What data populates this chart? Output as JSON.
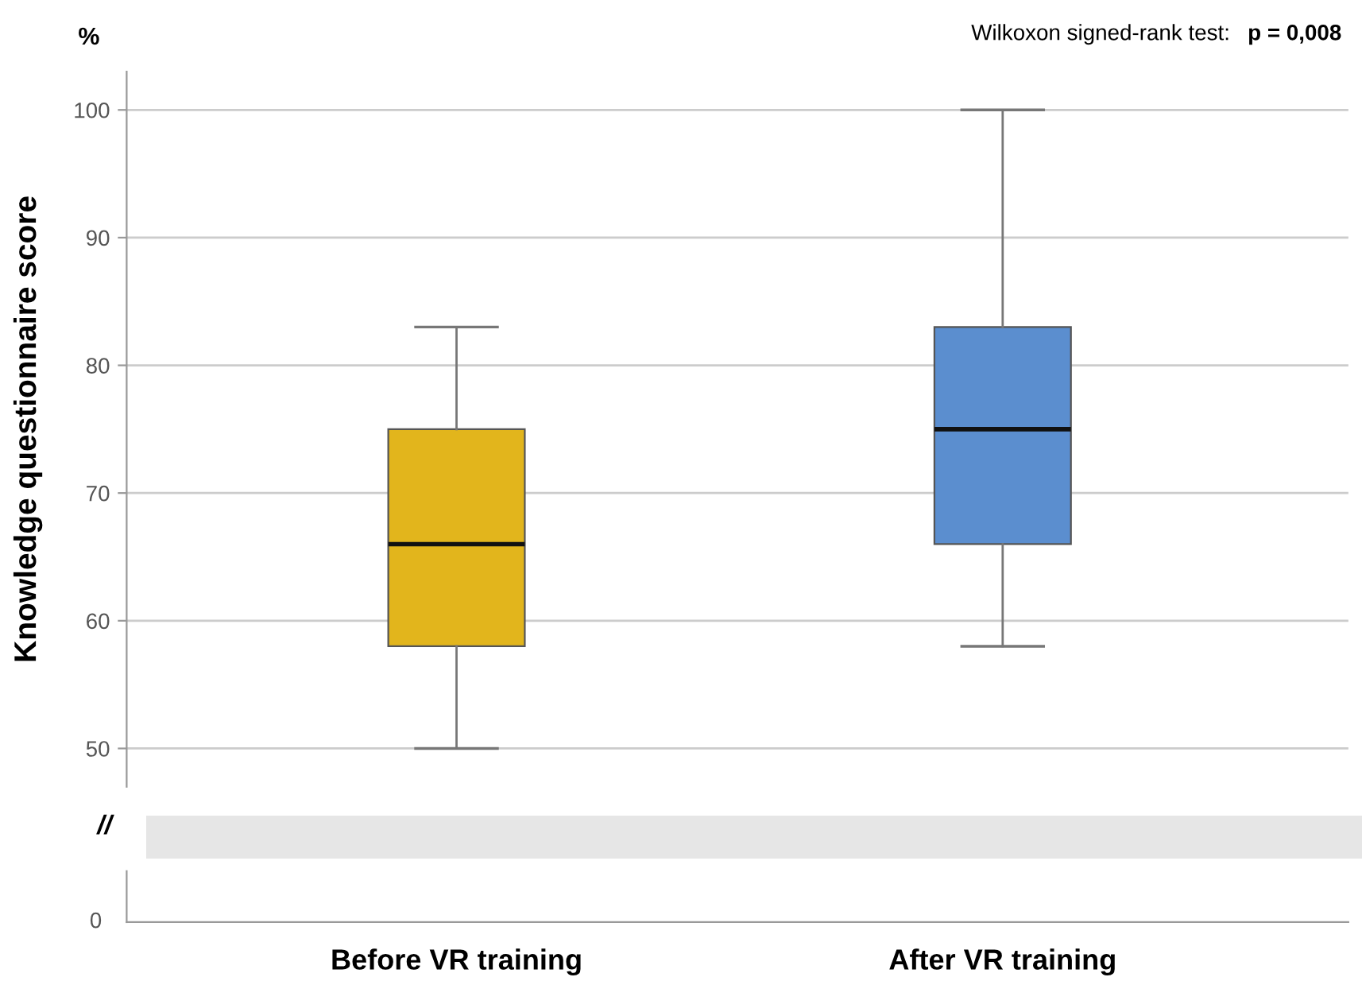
{
  "chart_data": [
    {
      "type": "box",
      "ylabel": "Knowledge questionnaire score",
      "categories": [
        null,
        null
      ],
      "series": [
        {
          "colors": [
            "#e2b51c",
            "#5b8ecf"
          ],
          "boxes": [
            {
              "low": 50,
              "q1": 58,
              "median": 66,
              "q3": 75,
              "high": 83
            },
            {
              "low": 58,
              "q1": 66,
              "median": 75,
              "q3": 83,
              "high": 100
            }
          ]
        }
      ],
      "ylim": [
        47,
        103
      ],
      "yticks": [
        50,
        60,
        70,
        80,
        90,
        100
      ],
      "grid": "y",
      "tick_labels": "y",
      "annotations": [
        "%",
        "Wilkoxon signed-rank test:",
        "p = 0,008"
      ]
    },
    {
      "type": "other",
      "categories": [
        "Before VR training",
        "After VR training"
      ],
      "annotations": [
        "//",
        "0"
      ]
    }
  ]
}
